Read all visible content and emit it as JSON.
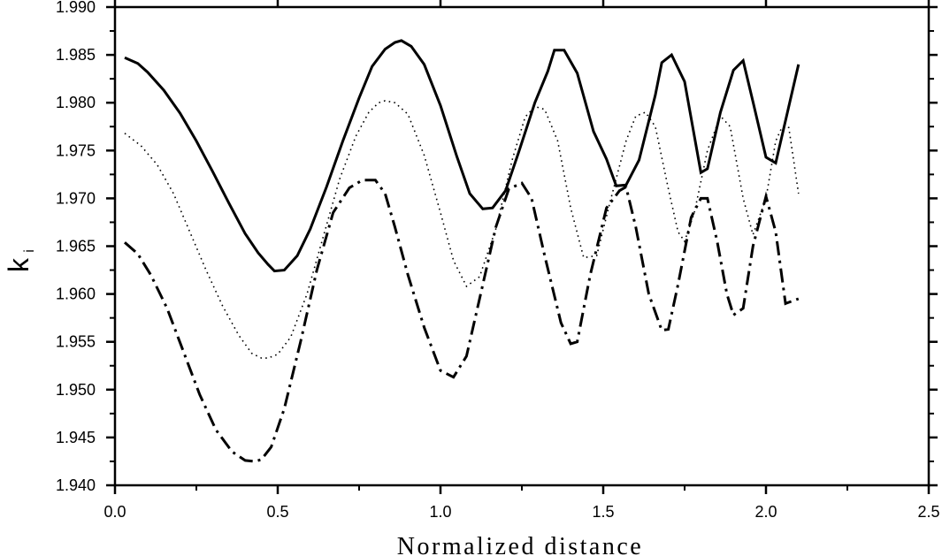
{
  "chart_data": {
    "type": "line",
    "title": "",
    "xlabel": "Normalized distance",
    "ylabel": "k",
    "ylabel_subscript": "i",
    "xlim": [
      0.0,
      2.5
    ],
    "ylim": [
      1.94,
      1.99
    ],
    "x_ticks": [
      "0.0",
      "0.5",
      "1.0",
      "1.5",
      "2.0",
      "2.5"
    ],
    "x_tick_values": [
      0.0,
      0.5,
      1.0,
      1.5,
      2.0,
      2.5
    ],
    "y_ticks": [
      "1.940",
      "1.945",
      "1.950",
      "1.955",
      "1.960",
      "1.965",
      "1.970",
      "1.975",
      "1.980",
      "1.985",
      "1.990"
    ],
    "y_tick_values": [
      1.94,
      1.945,
      1.95,
      1.955,
      1.96,
      1.965,
      1.97,
      1.975,
      1.98,
      1.985,
      1.99
    ],
    "grid": false,
    "legend": null,
    "series": [
      {
        "name": "solid",
        "style": "solid",
        "color": "#000000",
        "x": [
          0.03,
          0.07,
          0.1,
          0.15,
          0.2,
          0.25,
          0.3,
          0.35,
          0.4,
          0.44,
          0.47,
          0.49,
          0.52,
          0.56,
          0.6,
          0.65,
          0.7,
          0.75,
          0.79,
          0.83,
          0.86,
          0.88,
          0.91,
          0.95,
          1.0,
          1.05,
          1.09,
          1.13,
          1.16,
          1.2,
          1.24,
          1.29,
          1.33,
          1.35,
          1.38,
          1.42,
          1.47,
          1.51,
          1.54,
          1.57,
          1.61,
          1.66,
          1.68,
          1.71,
          1.75,
          1.8,
          1.82,
          1.86,
          1.9,
          1.93,
          1.96,
          2.0,
          2.03,
          2.1
        ],
        "y": [
          1.9847,
          1.9841,
          1.9832,
          1.9813,
          1.9789,
          1.976,
          1.9728,
          1.9695,
          1.9663,
          1.9643,
          1.9631,
          1.9624,
          1.9625,
          1.964,
          1.9668,
          1.9712,
          1.976,
          1.9805,
          1.9838,
          1.9856,
          1.9863,
          1.9865,
          1.9859,
          1.984,
          1.9797,
          1.9744,
          1.9705,
          1.9689,
          1.969,
          1.9708,
          1.9748,
          1.98,
          1.9833,
          1.9855,
          1.9855,
          1.9831,
          1.977,
          1.9741,
          1.9713,
          1.9714,
          1.974,
          1.9808,
          1.9842,
          1.985,
          1.9822,
          1.9727,
          1.9731,
          1.979,
          1.9834,
          1.9844,
          1.9801,
          1.9743,
          1.9737,
          1.984
        ]
      },
      {
        "name": "dotted",
        "style": "dotted",
        "color": "#000000",
        "x": [
          0.03,
          0.08,
          0.13,
          0.18,
          0.23,
          0.28,
          0.33,
          0.38,
          0.42,
          0.45,
          0.47,
          0.5,
          0.54,
          0.59,
          0.64,
          0.69,
          0.74,
          0.78,
          0.81,
          0.83,
          0.86,
          0.9,
          0.95,
          1.0,
          1.04,
          1.08,
          1.12,
          1.17,
          1.22,
          1.26,
          1.29,
          1.32,
          1.36,
          1.4,
          1.44,
          1.48,
          1.52,
          1.57,
          1.6,
          1.63,
          1.66,
          1.7,
          1.73,
          1.75,
          1.78,
          1.82,
          1.86,
          1.89,
          1.93,
          1.96,
          2.0,
          2.03,
          2.05,
          2.07,
          2.1
        ],
        "y": [
          1.9768,
          1.9755,
          1.9735,
          1.9705,
          1.9665,
          1.9625,
          1.9588,
          1.9557,
          1.9538,
          1.9533,
          1.9533,
          1.9537,
          1.9555,
          1.96,
          1.966,
          1.972,
          1.9765,
          1.979,
          1.98,
          1.9802,
          1.98,
          1.9788,
          1.9745,
          1.9685,
          1.9635,
          1.9608,
          1.9618,
          1.9668,
          1.974,
          1.9785,
          1.9796,
          1.9793,
          1.976,
          1.969,
          1.9638,
          1.964,
          1.9695,
          1.976,
          1.9786,
          1.979,
          1.9775,
          1.971,
          1.9665,
          1.9655,
          1.9685,
          1.975,
          1.9786,
          1.9775,
          1.97,
          1.9662,
          1.97,
          1.976,
          1.9775,
          1.9774,
          1.9705
        ]
      },
      {
        "name": "dash-dot",
        "style": "dashdot",
        "color": "#000000",
        "x": [
          0.03,
          0.07,
          0.11,
          0.16,
          0.21,
          0.26,
          0.31,
          0.36,
          0.4,
          0.43,
          0.45,
          0.48,
          0.52,
          0.57,
          0.62,
          0.67,
          0.72,
          0.76,
          0.8,
          0.83,
          0.86,
          0.9,
          0.95,
          1.0,
          1.04,
          1.08,
          1.12,
          1.17,
          1.21,
          1.25,
          1.28,
          1.32,
          1.37,
          1.4,
          1.42,
          1.46,
          1.51,
          1.55,
          1.57,
          1.6,
          1.64,
          1.68,
          1.7,
          1.73,
          1.77,
          1.8,
          1.82,
          1.85,
          1.88,
          1.9,
          1.93,
          1.96,
          2.0,
          2.03,
          2.06,
          2.1
        ],
        "y": [
          1.9654,
          1.9642,
          1.962,
          1.9585,
          1.954,
          1.9495,
          1.9458,
          1.9435,
          1.9426,
          1.9425,
          1.9427,
          1.944,
          1.948,
          1.955,
          1.9625,
          1.9685,
          1.9711,
          1.9719,
          1.9719,
          1.9705,
          1.967,
          1.962,
          1.9565,
          1.952,
          1.9513,
          1.9535,
          1.9595,
          1.967,
          1.971,
          1.9716,
          1.97,
          1.964,
          1.957,
          1.9548,
          1.955,
          1.962,
          1.969,
          1.9708,
          1.9712,
          1.967,
          1.96,
          1.9562,
          1.9563,
          1.961,
          1.968,
          1.97,
          1.97,
          1.9655,
          1.96,
          1.9578,
          1.9585,
          1.965,
          1.9702,
          1.9665,
          1.959,
          1.9595
        ]
      }
    ]
  }
}
